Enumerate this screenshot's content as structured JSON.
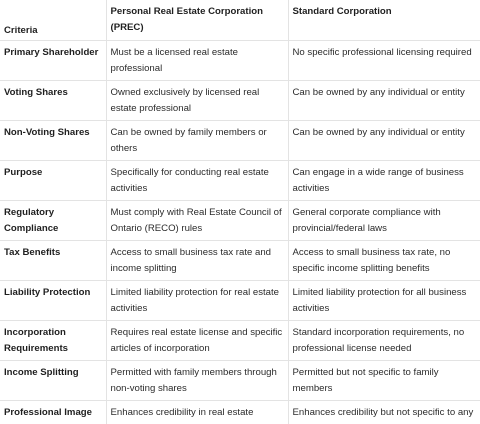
{
  "table": {
    "headers": [
      "Criteria",
      "Personal Real Estate Corporation (PREC)",
      "Standard Corporation"
    ],
    "rows": [
      {
        "criteria": "Primary Shareholder",
        "prec": "Must be a licensed real estate professional",
        "standard": "No specific professional licensing required"
      },
      {
        "criteria": "Voting Shares",
        "prec": "Owned exclusively by licensed real estate professional",
        "standard": "Can be owned by any individual or entity"
      },
      {
        "criteria": "Non-Voting Shares",
        "prec": "Can be owned by family members or others",
        "standard": "Can be owned by any individual or entity"
      },
      {
        "criteria": "Purpose",
        "prec": "Specifically for conducting real estate activities",
        "standard": "Can engage in a wide range of business activities"
      },
      {
        "criteria": "Regulatory Compliance",
        "prec": "Must comply with Real Estate Council of Ontario (RECO) rules",
        "standard": "General corporate compliance with provincial/federal laws"
      },
      {
        "criteria": "Tax Benefits",
        "prec": "Access to small business tax rate and income splitting",
        "standard": "Access to small business tax rate, no specific income splitting benefits"
      },
      {
        "criteria": "Liability Protection",
        "prec": "Limited liability protection for real estate activities",
        "standard": "Limited liability protection for all business activities"
      },
      {
        "criteria": "Incorporation Requirements",
        "prec": "Requires real estate license and specific articles of incorporation",
        "standard": "Standard incorporation requirements, no professional license needed"
      },
      {
        "criteria": "Income Splitting",
        "prec": "Permitted with family members through non-voting shares",
        "standard": "Permitted but not specific to family members"
      },
      {
        "criteria": "Professional Image",
        "prec": "Enhances credibility in real estate market",
        "standard": "Enhances credibility but not specific to any profession"
      }
    ]
  }
}
